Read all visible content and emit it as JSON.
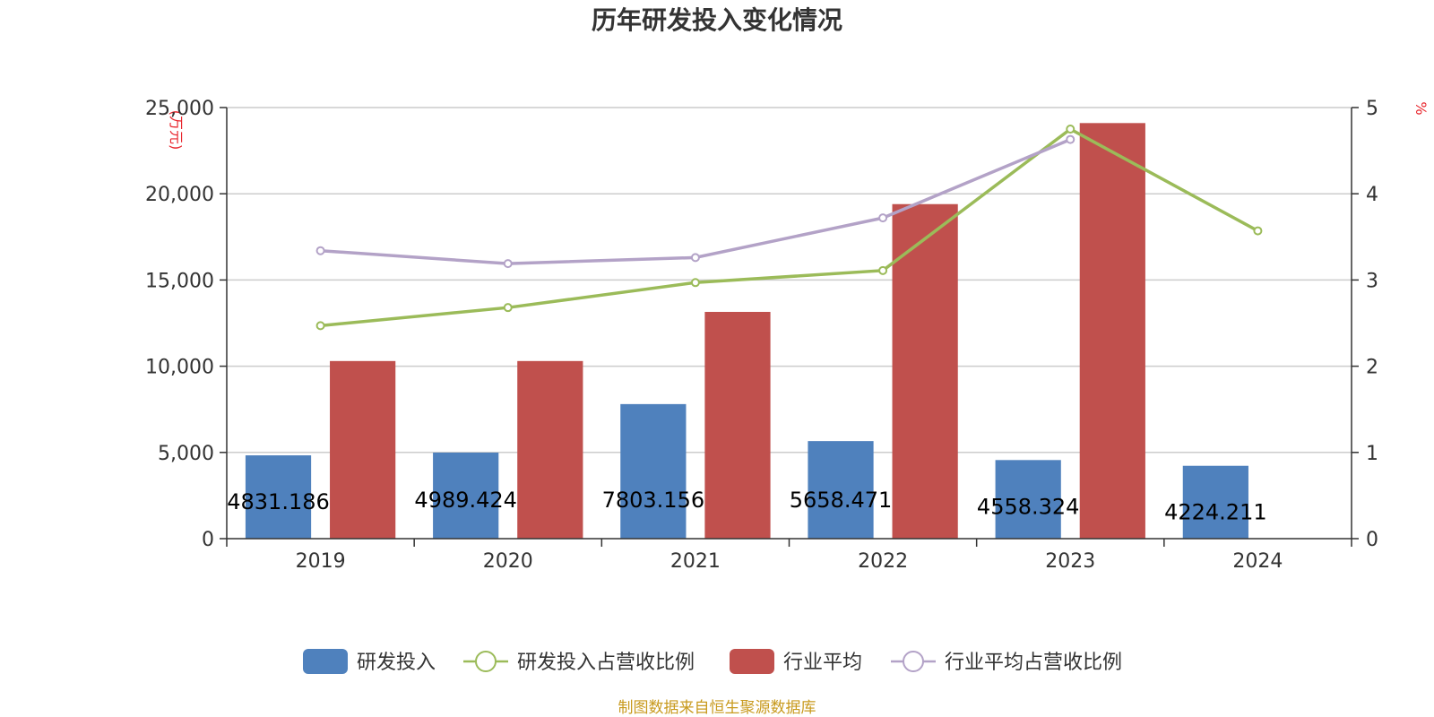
{
  "chart_data": {
    "type": "bar",
    "title": "历年研发投入变化情况",
    "left_unit": "(万元)",
    "right_unit": "%",
    "categories": [
      "2019",
      "2020",
      "2021",
      "2022",
      "2023",
      "2024"
    ],
    "y_left": {
      "lim": [
        0,
        25000
      ],
      "ticks": [
        "0",
        "5,000",
        "10,000",
        "15,000",
        "20,000",
        "25,000"
      ]
    },
    "y_right": {
      "lim": [
        0,
        5
      ],
      "ticks": [
        "0",
        "1",
        "2",
        "3",
        "4",
        "5"
      ]
    },
    "grid": true,
    "legend_position": "bottom",
    "series": [
      {
        "name": "研发投入",
        "kind": "bar",
        "axis": "left",
        "color": "#4f81bd",
        "values": [
          4831.186,
          4989.424,
          7803.156,
          5658.471,
          4558.324,
          4224.211
        ],
        "labels": [
          "4831.186",
          "4989.424",
          "7803.156",
          "5658.471",
          "4558.324",
          "4224.211"
        ]
      },
      {
        "name": "研发投入占营收比例",
        "kind": "line",
        "axis": "right",
        "color": "#9bbb59",
        "values": [
          2.47,
          2.68,
          2.97,
          3.11,
          4.75,
          3.57
        ]
      },
      {
        "name": "行业平均",
        "kind": "bar",
        "axis": "left",
        "color": "#c0504d",
        "values": [
          10300,
          10300,
          13150,
          19400,
          24100,
          null
        ]
      },
      {
        "name": "行业平均占营收比例",
        "kind": "line",
        "axis": "right",
        "color": "#b3a2c7",
        "values": [
          3.34,
          3.19,
          3.26,
          3.72,
          4.63,
          null
        ]
      }
    ],
    "source": "制图数据来自恒生聚源数据库"
  }
}
